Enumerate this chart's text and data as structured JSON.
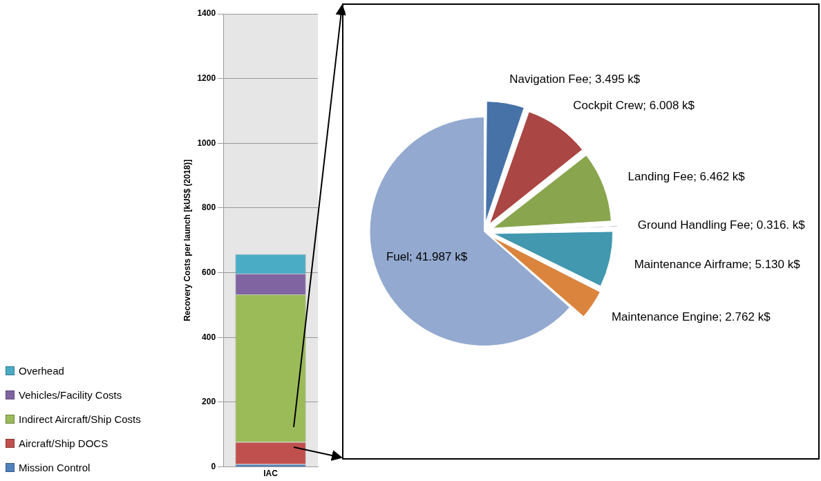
{
  "chart_data": [
    {
      "type": "bar",
      "stacked": true,
      "categories": [
        "IAC"
      ],
      "ylabel": "Recovery Costs per launch [kUS$ (2018)]",
      "ylim": [
        0,
        1400
      ],
      "yticks": [
        0,
        200,
        400,
        600,
        800,
        1000,
        1200,
        1400
      ],
      "grid": "y",
      "legend": "left",
      "series": [
        {
          "name": "Mission Control",
          "color": "#4f81bd",
          "values": [
            9
          ]
        },
        {
          "name": "Aircraft/Ship DOCS",
          "color": "#c0504d",
          "values": [
            68
          ]
        },
        {
          "name": "Indirect Aircraft/Ship Costs",
          "color": "#9bbb59",
          "values": [
            456
          ]
        },
        {
          "name": "Vehicles/Facility Costs",
          "color": "#8064a2",
          "values": [
            64
          ]
        },
        {
          "name": "Overhead",
          "color": "#4bacc6",
          "values": [
            61
          ]
        }
      ]
    },
    {
      "type": "pie",
      "categories": [
        "Navigation Fee",
        "Cockpit Crew",
        "Landing Fee",
        "Ground Handling Fee",
        "Maintenance Airframe",
        "Maintenance Engine",
        "Fuel"
      ],
      "values": [
        3.495,
        6.008,
        6.462,
        0.316,
        5.13,
        2.762,
        41.987
      ],
      "value_labels": [
        "3.495 k$",
        "6.008 k$",
        "6.462 k$",
        "0.316. k$",
        "5.130 k$",
        "2.762 k$",
        "41.987 k$"
      ],
      "colors": [
        "#4672a8",
        "#aa4643",
        "#89a54e",
        "#71588f",
        "#4198af",
        "#db843d",
        "#93a9cf"
      ]
    }
  ]
}
